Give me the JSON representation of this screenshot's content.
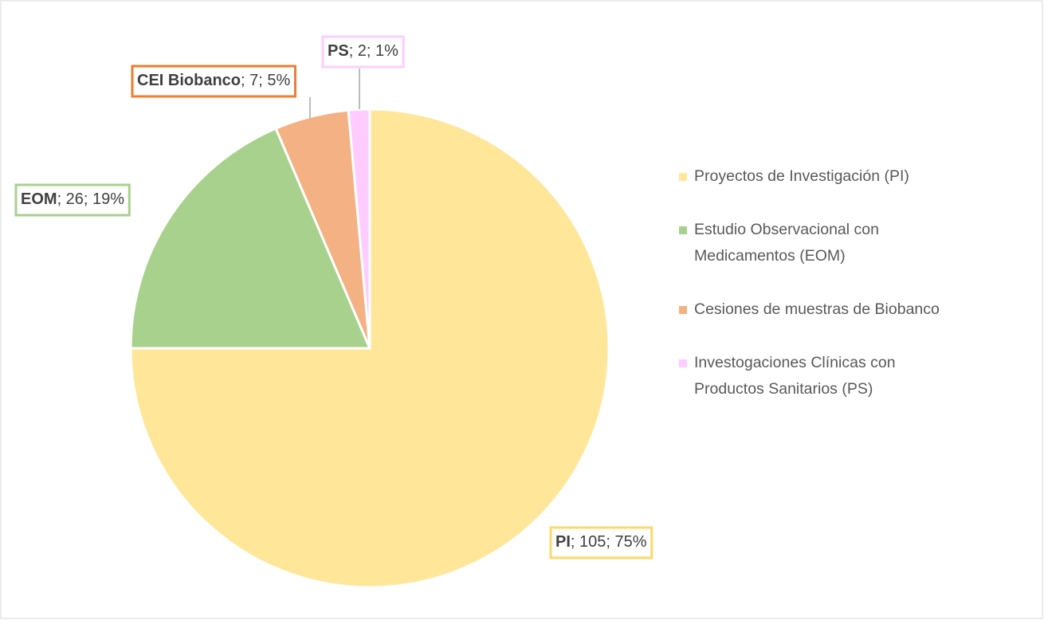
{
  "chart_data": {
    "type": "pie",
    "categories": [
      "Proyectos de Investigación (PI)",
      "Estudio Observacional con Medicamentos (EOM)",
      "Cesiones de muestras de Biobanco",
      "Investogaciones Clínicas con Productos Sanitarios (PS)"
    ],
    "values": [
      105,
      26,
      7,
      2
    ],
    "value_labels": [
      "PI; 105; 75%",
      "EOM; 26; 19%",
      "CEI Biobanco; 7; 5%",
      "PS; 2; 1%"
    ],
    "colors": [
      "#ffe699",
      "#a9d18e",
      "#f4b183",
      "#ffccff"
    ],
    "label_border_colors": [
      "#ffd966",
      "#a9d18e",
      "#ed7d31",
      "#ffccff"
    ],
    "legend": "right"
  }
}
